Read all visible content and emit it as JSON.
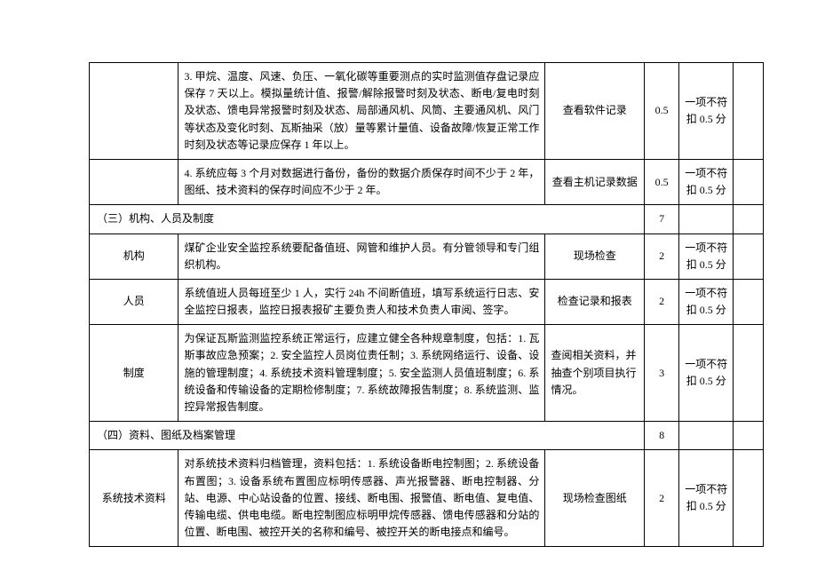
{
  "table": {
    "rows": [
      {
        "type": "data",
        "c1": "",
        "c2": "3. 甲烷、温度、风速、负压、一氧化碳等重要测点的实时监测值存盘记录应保存 7 天以上。模拟量统计值、报警/解除报警时刻及状态、断电/复电时刻及状态、馈电异常报警时刻及状态、局部通风机、风筒、主要通风机、风门等状态及变化时刻、瓦斯抽采（放）量等累计量值、设备故障/恢复正常工作时刻及状态等记录应保存 1 年以上。",
        "c3": "查看软件记录",
        "c4": "0.5",
        "c5": "一项不符扣 0.5 分",
        "c6": ""
      },
      {
        "type": "data",
        "c1": "",
        "c2": "4. 系统应每 3 个月对数据进行备份，备份的数据介质保存时间不少于 2 年，图纸、技术资料的保存时间应不少于 2 年。",
        "c3": "查看主机记录数据",
        "c4": "0.5",
        "c5": "一项不符扣 0.5 分",
        "c6": ""
      },
      {
        "type": "section",
        "label": "（三）机构、人员及制度",
        "score": "7"
      },
      {
        "type": "data",
        "c1": "机构",
        "c2": "煤矿企业安全监控系统要配备值班、网管和维护人员。有分管领导和专门组织机构。",
        "c3": "现场检查",
        "c4": "2",
        "c5": "一项不符扣 0.5 分",
        "c6": ""
      },
      {
        "type": "data",
        "c1": "人员",
        "c2": "系统值班人员每班至少 1 人，实行 24h 不间断值班，填写系统运行日志、安全监控日报表，监控日报表报矿主要负责人和技术负责人审阅、签字。",
        "c3": "检查记录和报表",
        "c4": "2",
        "c5": "一项不符扣 0.5 分",
        "c6": ""
      },
      {
        "type": "data",
        "c1": "制度",
        "c2": "为保证瓦斯监测监控系统正常运行，应建立健全各种规章制度，包括：1. 瓦斯事故应急预案；2. 安全监控人员岗位责任制；3. 系统网络运行、设备、设施的管理制度；4. 系统技术资料管理制度；5. 安全监测人员值班制度；6. 系统设备和传输设备的定期检修制度；7. 系统故障报告制度；8. 系统监测、监控异常报告制度。",
        "c3": "查阅相关资料，并抽查个别项目执行情况。",
        "c4": "3",
        "c5": "一项不符扣 0.5 分",
        "c6": ""
      },
      {
        "type": "section",
        "label": "（四）资料、图纸及档案管理",
        "score": "8"
      },
      {
        "type": "data",
        "c1": "系统技术资料",
        "c2": "对系统技术资料归档管理，资料包括：1. 系统设备断电控制图；2. 系统设备布置图；3. 设备系统布置图应标明传感器、声光报警器、断电控制器、分站、电源、中心站设备的位置、接线、断电围、报警值、断电值、复电值、传输电缆、供电电缆。断电控制图应标明甲烷传感器、馈电传感器和分站的位置、断电围、被控开关的名称和编号、被控开关的断电接点和编号。",
        "c3": "现场检查图纸",
        "c4": "2",
        "c5": "一项不符扣 0.5 分",
        "c6": ""
      }
    ]
  }
}
